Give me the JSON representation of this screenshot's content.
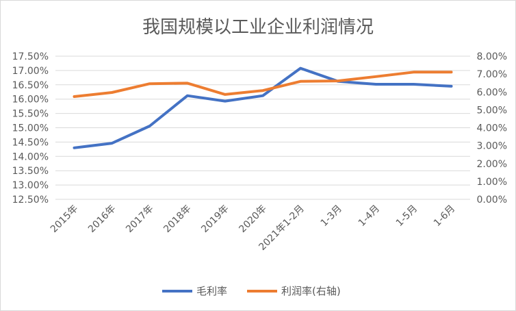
{
  "chart_data": {
    "type": "line",
    "title": "我国规模以工业企业利润情况",
    "categories": [
      "2015年",
      "2016年",
      "2017年",
      "2018年",
      "2019年",
      "2020年",
      "2021年1-2月",
      "1-3月",
      "1-4月",
      "1-5月",
      "1-6月"
    ],
    "y_left": {
      "min": 12.5,
      "max": 17.5,
      "step": 0.5,
      "tick_labels": [
        "12.50%",
        "13.00%",
        "13.50%",
        "14.00%",
        "14.50%",
        "15.00%",
        "15.50%",
        "16.00%",
        "16.50%",
        "17.00%",
        "17.50%"
      ]
    },
    "y_right": {
      "min": 0,
      "max": 8,
      "step": 1,
      "tick_labels": [
        "0.00%",
        "1.00%",
        "2.00%",
        "3.00%",
        "4.00%",
        "5.00%",
        "6.00%",
        "7.00%",
        "8.00%"
      ]
    },
    "series": [
      {
        "name": "毛利率",
        "axis": "left",
        "color": "#4472c4",
        "values": [
          14.3,
          14.46,
          15.06,
          16.12,
          15.93,
          16.12,
          17.08,
          16.62,
          16.52,
          16.52,
          16.45
        ]
      },
      {
        "name": "利润率(右轴)",
        "axis": "right",
        "color": "#ed7d31",
        "values": [
          5.74,
          5.97,
          6.46,
          6.49,
          5.86,
          6.08,
          6.59,
          6.62,
          6.86,
          7.11,
          7.11
        ]
      }
    ],
    "grid": true,
    "legend": "bottom"
  }
}
